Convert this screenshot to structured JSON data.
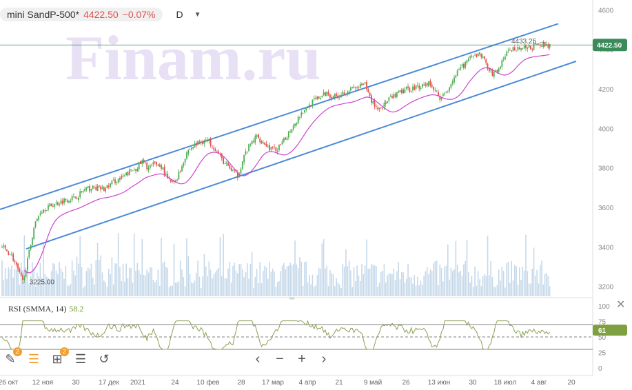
{
  "header": {
    "symbol": "mini SandP-500*",
    "price": "4422.50",
    "change": "−0.07%",
    "timeframe": "D"
  },
  "watermark": "Finam.ru",
  "annotations": {
    "high_label": "4433.25",
    "low_label": "3225.00",
    "price_badge": "4422.50"
  },
  "rsi": {
    "label": "RSI (SMMA, 14)",
    "value": "58.2",
    "badge": "61"
  },
  "colors": {
    "up": "#4caf50",
    "down": "#e0524a",
    "channel": "#4a8ad8",
    "ma": "#cc44cc",
    "volume": "#c5d8ea",
    "rsi_line": "#8aa050",
    "price_line": "#3a8a5a"
  },
  "toolbar": {
    "draw_badge": "2",
    "indicator_badge": "2"
  },
  "chart_data": [
    {
      "type": "candlestick",
      "y_ticks": [
        3200,
        3400,
        3600,
        3800,
        4000,
        4200,
        4400,
        4600
      ],
      "ylim": [
        3150,
        4650
      ],
      "x_ticks": [
        "26 окт",
        "12 ноя",
        "30",
        "17 дек",
        "2021",
        "24",
        "10 фев",
        "28",
        "17 мар",
        "4 апр",
        "21",
        "9 май",
        "26",
        "13 июн",
        "30",
        "18 июл",
        "4 авг",
        "20"
      ],
      "close_path": [
        [
          0,
          3400
        ],
        [
          6,
          3360
        ],
        [
          10,
          3280
        ],
        [
          13,
          3225
        ],
        [
          16,
          3330
        ],
        [
          20,
          3500
        ],
        [
          24,
          3580
        ],
        [
          28,
          3600
        ],
        [
          34,
          3620
        ],
        [
          40,
          3640
        ],
        [
          46,
          3650
        ],
        [
          52,
          3690
        ],
        [
          58,
          3700
        ],
        [
          64,
          3690
        ],
        [
          70,
          3730
        ],
        [
          76,
          3750
        ],
        [
          80,
          3780
        ],
        [
          84,
          3800
        ],
        [
          88,
          3830
        ],
        [
          92,
          3800
        ],
        [
          96,
          3820
        ],
        [
          100,
          3810
        ],
        [
          104,
          3740
        ],
        [
          108,
          3720
        ],
        [
          112,
          3790
        ],
        [
          116,
          3880
        ],
        [
          120,
          3910
        ],
        [
          124,
          3930
        ],
        [
          128,
          3940
        ],
        [
          132,
          3920
        ],
        [
          136,
          3870
        ],
        [
          140,
          3820
        ],
        [
          144,
          3790
        ],
        [
          148,
          3760
        ],
        [
          152,
          3860
        ],
        [
          156,
          3920
        ],
        [
          160,
          3960
        ],
        [
          164,
          3930
        ],
        [
          168,
          3900
        ],
        [
          172,
          3890
        ],
        [
          176,
          3920
        ],
        [
          180,
          3980
        ],
        [
          184,
          4030
        ],
        [
          188,
          4080
        ],
        [
          192,
          4110
        ],
        [
          196,
          4140
        ],
        [
          200,
          4160
        ],
        [
          204,
          4180
        ],
        [
          208,
          4160
        ],
        [
          212,
          4170
        ],
        [
          216,
          4190
        ],
        [
          220,
          4200
        ],
        [
          224,
          4210
        ],
        [
          228,
          4220
        ],
        [
          232,
          4140
        ],
        [
          236,
          4100
        ],
        [
          240,
          4120
        ],
        [
          244,
          4150
        ],
        [
          248,
          4170
        ],
        [
          252,
          4190
        ],
        [
          256,
          4200
        ],
        [
          260,
          4210
        ],
        [
          264,
          4220
        ],
        [
          268,
          4230
        ],
        [
          272,
          4190
        ],
        [
          276,
          4150
        ],
        [
          280,
          4200
        ],
        [
          284,
          4260
        ],
        [
          288,
          4300
        ],
        [
          292,
          4340
        ],
        [
          296,
          4360
        ],
        [
          300,
          4380
        ],
        [
          304,
          4330
        ],
        [
          308,
          4270
        ],
        [
          312,
          4300
        ],
        [
          316,
          4370
        ],
        [
          320,
          4400
        ],
        [
          324,
          4410
        ],
        [
          328,
          4405
        ],
        [
          332,
          4410
        ],
        [
          336,
          4420
        ],
        [
          340,
          4425
        ],
        [
          344,
          4422.5
        ]
      ],
      "high": 4433.25,
      "low": 3225.0,
      "last": 4422.5,
      "moving_average_start": 3390,
      "moving_average_end": 4325
    },
    {
      "type": "line",
      "title": "RSI (SMMA, 14)",
      "y_ticks": [
        0,
        25,
        50,
        75,
        100
      ],
      "ylim": [
        0,
        100
      ],
      "levels": [
        30,
        50,
        70
      ],
      "last": 58.2
    }
  ]
}
